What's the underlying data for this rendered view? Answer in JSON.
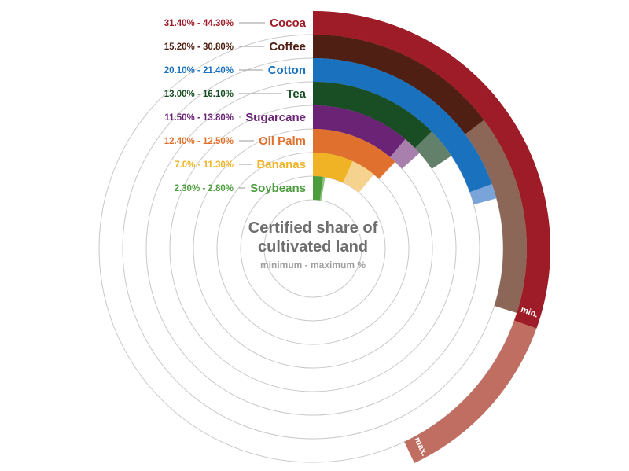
{
  "chart_data": {
    "type": "radial-bar",
    "title": "Certified share of cultivated land",
    "subtitle": "minimum - maximum %",
    "min_tag": "min.",
    "max_tag": "max.",
    "series": [
      {
        "name": "Cocoa",
        "range_label": "31.40% - 44.30%",
        "min": 31.4,
        "max": 44.3,
        "color": "#9e1c27",
        "max_color": "#bf6e61"
      },
      {
        "name": "Coffee",
        "range_label": "15.20% - 30.80%",
        "min": 15.2,
        "max": 30.8,
        "color": "#4f1f13",
        "max_color": "#8c6656"
      },
      {
        "name": "Cotton",
        "range_label": "20.10% - 21.40%",
        "min": 20.1,
        "max": 21.4,
        "color": "#1a71bd",
        "max_color": "#79a4da"
      },
      {
        "name": "Tea",
        "range_label": "13.00% - 16.10%",
        "min": 13.0,
        "max": 16.1,
        "color": "#194d24",
        "max_color": "#63806a"
      },
      {
        "name": "Sugarcane",
        "range_label": "11.50% - 13.80%",
        "min": 11.5,
        "max": 13.8,
        "color": "#6b2475",
        "max_color": "#a97fae"
      },
      {
        "name": "Oil Palm",
        "range_label": "12.40% - 12.50%",
        "min": 12.4,
        "max": 12.5,
        "color": "#e0702e",
        "max_color": "#eda07a"
      },
      {
        "name": "Bananas",
        "range_label": "7.0% - 11.30%",
        "min": 7.0,
        "max": 11.3,
        "color": "#f0b325",
        "max_color": "#f6d28f"
      },
      {
        "name": "Soybeans",
        "range_label": "2.30% - 2.80%",
        "min": 2.3,
        "max": 2.8,
        "color": "#4c9c3e",
        "max_color": "#8dc47c"
      }
    ]
  }
}
